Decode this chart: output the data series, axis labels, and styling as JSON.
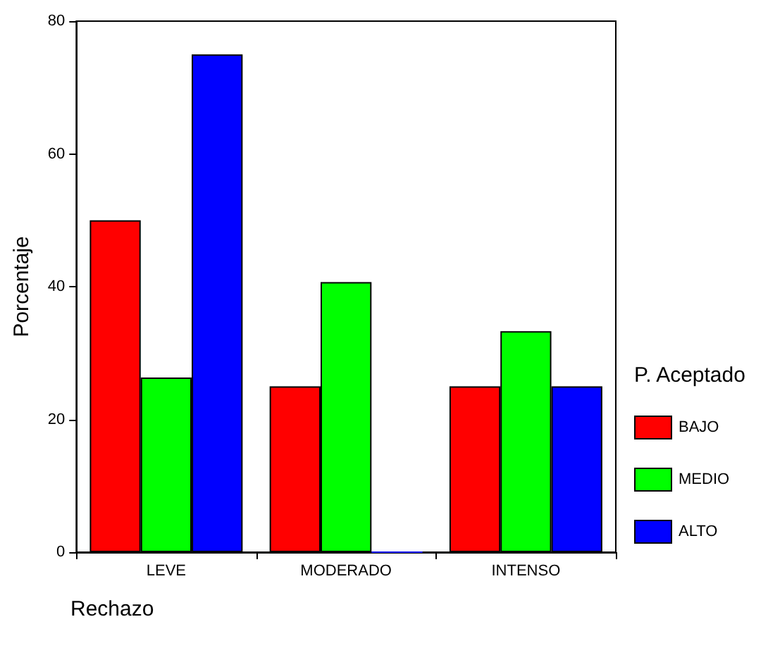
{
  "chart_data": {
    "type": "bar",
    "xlabel": "Rechazo",
    "ylabel": "Porcentaje",
    "legend_title": "P. Aceptado",
    "categories": [
      "LEVE",
      "MODERADO",
      "INTENSO"
    ],
    "series": [
      {
        "name": "BAJO",
        "color": "#ff0000",
        "values": [
          50,
          25,
          25
        ]
      },
      {
        "name": "MEDIO",
        "color": "#00ff00",
        "values": [
          26.3,
          40.7,
          33.3
        ]
      },
      {
        "name": "ALTO",
        "color": "#0000ff",
        "values": [
          75,
          0,
          25
        ]
      }
    ],
    "ylim": [
      0,
      80
    ],
    "yticks": [
      0,
      20,
      40,
      60,
      80
    ],
    "grid": false,
    "legend": "right"
  }
}
